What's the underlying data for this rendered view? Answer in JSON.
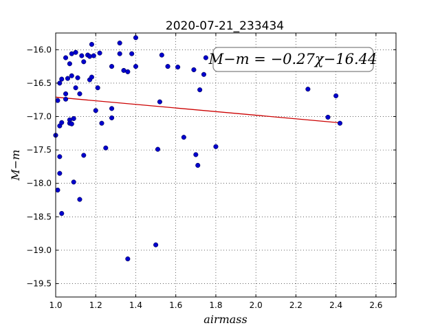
{
  "chart_data": {
    "type": "scatter",
    "title": "2020-07-21_233434",
    "xlabel": "airmass",
    "ylabel": "M−m",
    "xlim": [
      1.0,
      2.7
    ],
    "ylim": [
      -19.7,
      -15.75
    ],
    "y_inverted": true,
    "grid": true,
    "grid_style": "dotted",
    "x_ticks": [
      1.0,
      1.2,
      1.4,
      1.6,
      1.8,
      2.0,
      2.2,
      2.4,
      2.6
    ],
    "x_tick_labels": [
      "1.0",
      "1.2",
      "1.4",
      "1.6",
      "1.8",
      "2.0",
      "2.2",
      "2.4",
      "2.6"
    ],
    "y_ticks": [
      -16.0,
      -16.5,
      -17.0,
      -17.5,
      -18.0,
      -18.5,
      -19.0,
      -19.5
    ],
    "y_tick_labels": [
      "−16.0",
      "−16.5",
      "−17.0",
      "−17.5",
      "−18.0",
      "−18.5",
      "−19.0",
      "−19.5"
    ],
    "annotation": "M−m = −0.27χ−16.44",
    "point_color": "#0000cc",
    "fit_color": "#cc0000",
    "fit": {
      "slope": -0.27,
      "intercept": -16.44,
      "x_range": [
        1.0,
        2.42
      ]
    },
    "points": [
      {
        "x": 1.0,
        "y": -17.28
      },
      {
        "x": 1.01,
        "y": -18.1
      },
      {
        "x": 1.01,
        "y": -16.76
      },
      {
        "x": 1.02,
        "y": -16.5
      },
      {
        "x": 1.02,
        "y": -17.14
      },
      {
        "x": 1.02,
        "y": -17.6
      },
      {
        "x": 1.02,
        "y": -17.85
      },
      {
        "x": 1.03,
        "y": -17.09
      },
      {
        "x": 1.03,
        "y": -18.45
      },
      {
        "x": 1.03,
        "y": -16.44
      },
      {
        "x": 1.05,
        "y": -16.12
      },
      {
        "x": 1.05,
        "y": -16.66
      },
      {
        "x": 1.05,
        "y": -16.74
      },
      {
        "x": 1.06,
        "y": -16.43
      },
      {
        "x": 1.07,
        "y": -16.21
      },
      {
        "x": 1.07,
        "y": -17.05
      },
      {
        "x": 1.07,
        "y": -17.1
      },
      {
        "x": 1.08,
        "y": -16.39
      },
      {
        "x": 1.08,
        "y": -17.11
      },
      {
        "x": 1.08,
        "y": -16.06
      },
      {
        "x": 1.09,
        "y": -17.03
      },
      {
        "x": 1.09,
        "y": -17.98
      },
      {
        "x": 1.1,
        "y": -16.04
      },
      {
        "x": 1.1,
        "y": -16.57
      },
      {
        "x": 1.11,
        "y": -16.42
      },
      {
        "x": 1.12,
        "y": -16.66
      },
      {
        "x": 1.12,
        "y": -18.24
      },
      {
        "x": 1.13,
        "y": -16.09
      },
      {
        "x": 1.14,
        "y": -16.18
      },
      {
        "x": 1.14,
        "y": -17.58
      },
      {
        "x": 1.16,
        "y": -16.08
      },
      {
        "x": 1.17,
        "y": -16.1
      },
      {
        "x": 1.17,
        "y": -16.45
      },
      {
        "x": 1.18,
        "y": -15.92
      },
      {
        "x": 1.18,
        "y": -16.41
      },
      {
        "x": 1.19,
        "y": -16.09
      },
      {
        "x": 1.2,
        "y": -16.91
      },
      {
        "x": 1.21,
        "y": -16.57
      },
      {
        "x": 1.22,
        "y": -16.05
      },
      {
        "x": 1.23,
        "y": -17.1
      },
      {
        "x": 1.25,
        "y": -17.47
      },
      {
        "x": 1.28,
        "y": -16.25
      },
      {
        "x": 1.28,
        "y": -16.88
      },
      {
        "x": 1.28,
        "y": -17.02
      },
      {
        "x": 1.32,
        "y": -15.9
      },
      {
        "x": 1.32,
        "y": -16.06
      },
      {
        "x": 1.34,
        "y": -16.31
      },
      {
        "x": 1.36,
        "y": -16.33
      },
      {
        "x": 1.36,
        "y": -19.13
      },
      {
        "x": 1.38,
        "y": -16.06
      },
      {
        "x": 1.4,
        "y": -15.82
      },
      {
        "x": 1.4,
        "y": -16.25
      },
      {
        "x": 1.5,
        "y": -18.92
      },
      {
        "x": 1.51,
        "y": -17.49
      },
      {
        "x": 1.52,
        "y": -16.78
      },
      {
        "x": 1.53,
        "y": -16.08
      },
      {
        "x": 1.56,
        "y": -16.25
      },
      {
        "x": 1.61,
        "y": -16.26
      },
      {
        "x": 1.64,
        "y": -17.31
      },
      {
        "x": 1.69,
        "y": -16.3
      },
      {
        "x": 1.7,
        "y": -17.57
      },
      {
        "x": 1.71,
        "y": -17.73
      },
      {
        "x": 1.72,
        "y": -16.6
      },
      {
        "x": 1.74,
        "y": -16.37
      },
      {
        "x": 1.75,
        "y": -16.12
      },
      {
        "x": 1.8,
        "y": -17.45
      },
      {
        "x": 2.26,
        "y": -16.59
      },
      {
        "x": 2.36,
        "y": -17.01
      },
      {
        "x": 2.4,
        "y": -16.69
      },
      {
        "x": 2.42,
        "y": -17.1
      }
    ]
  }
}
